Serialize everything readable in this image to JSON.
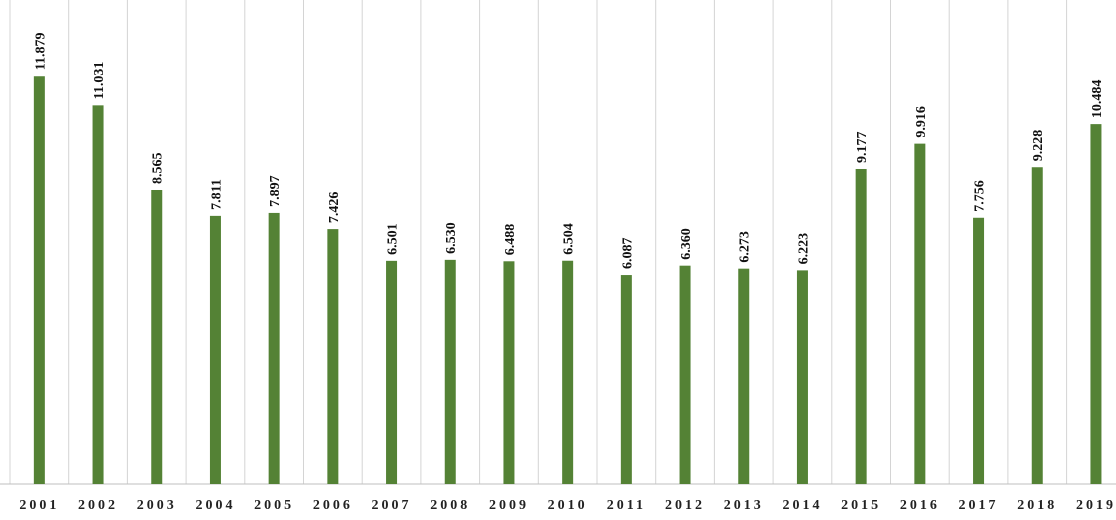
{
  "chart_data": {
    "type": "bar",
    "categories": [
      "2001",
      "2002",
      "2003",
      "2004",
      "2005",
      "2006",
      "2007",
      "2008",
      "2009",
      "2010",
      "2011",
      "2012",
      "2013",
      "2014",
      "2015",
      "2016",
      "2017",
      "2018",
      "2019"
    ],
    "values": [
      11.879,
      11.031,
      8.565,
      7.811,
      7.897,
      7.426,
      6.501,
      6.53,
      6.488,
      6.504,
      6.087,
      6.36,
      6.273,
      6.223,
      9.177,
      9.916,
      7.756,
      9.228,
      10.484
    ],
    "value_labels": [
      "11.879",
      "11.031",
      "8.565",
      "7.811",
      "7.897",
      "7.426",
      "6.501",
      "6.530",
      "6.488",
      "6.504",
      "6.087",
      "6.360",
      "6.273",
      "6.223",
      "9.177",
      "9.916",
      "7.756",
      "9.228",
      "10.484"
    ],
    "title": "",
    "xlabel": "",
    "ylabel": "",
    "ylim": [
      0,
      14.1
    ],
    "grid": "vertical",
    "legend": "none",
    "colors": {
      "bar": "#548235",
      "grid": "#d4d4d4",
      "axis": "#bfbfbf"
    }
  }
}
